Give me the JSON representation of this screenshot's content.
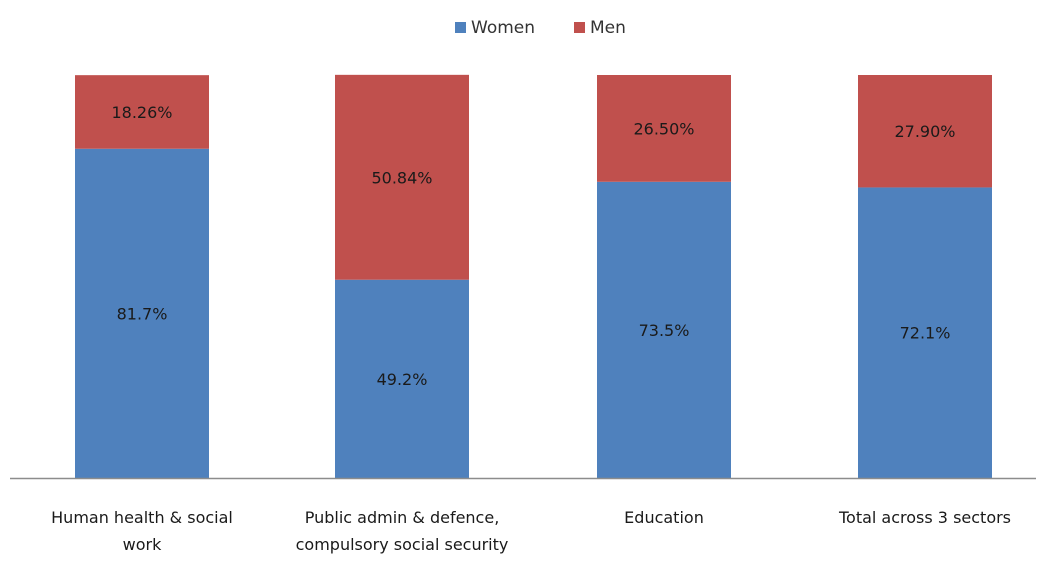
{
  "chart_data": {
    "type": "bar",
    "stacked": true,
    "percent_stacked": true,
    "title": "",
    "xlabel": "",
    "ylabel": "",
    "ylim": [
      0,
      100
    ],
    "grid": false,
    "legend": "top-center",
    "categories": [
      [
        "Human health & social",
        "work"
      ],
      [
        "Public admin & defence,",
        "compulsory social security"
      ],
      [
        "Education"
      ],
      [
        "Total across 3 sectors"
      ]
    ],
    "series": [
      {
        "name": "Women",
        "color": "#4f81bd",
        "values": [
          81.7,
          49.2,
          73.5,
          72.1
        ],
        "labels": [
          "81.7%",
          "49.2%",
          "73.5%",
          "72.1%"
        ]
      },
      {
        "name": "Men",
        "color": "#c0504d",
        "values": [
          18.26,
          50.84,
          26.5,
          27.9
        ],
        "labels": [
          "18.26%",
          "50.84%",
          "26.50%",
          "27.90%"
        ]
      }
    ]
  }
}
